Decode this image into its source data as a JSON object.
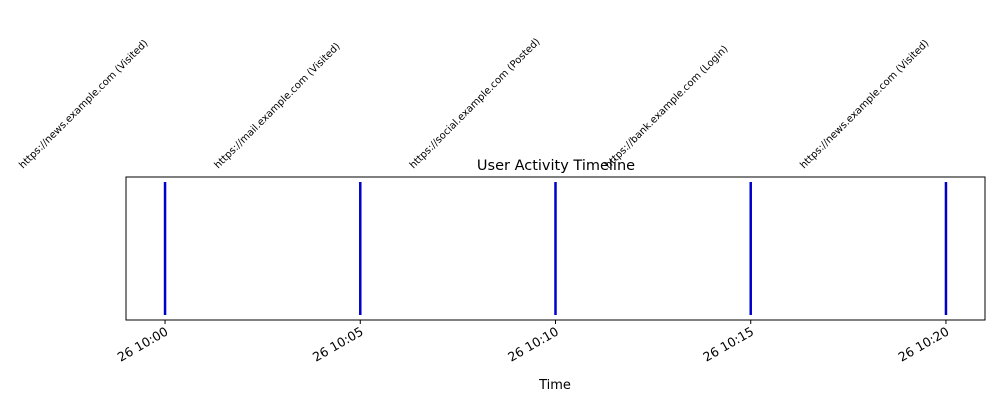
{
  "chart_data": {
    "type": "timeline",
    "title": "User Activity Timeline",
    "xlabel": "Time",
    "ylabel": "",
    "xlim": [
      "26 09:59",
      "26 10:21"
    ],
    "grid": false,
    "legend": "none",
    "events": [
      {
        "time": "26 10:00",
        "label": "https://news.example.com (Visited)"
      },
      {
        "time": "26 10:05",
        "label": "https://mail.example.com (Visited)"
      },
      {
        "time": "26 10:10",
        "label": "https://social.example.com (Posted)"
      },
      {
        "time": "26 10:15",
        "label": "https://bank.example.com (Login)"
      },
      {
        "time": "26 10:20",
        "label": "https://news.example.com (Visited)"
      }
    ],
    "x_ticks": [
      "26 10:00",
      "26 10:05",
      "26 10:10",
      "26 10:15",
      "26 10:20"
    ],
    "colors": {
      "event_line": "#0000cc",
      "axes": "#000000"
    }
  }
}
